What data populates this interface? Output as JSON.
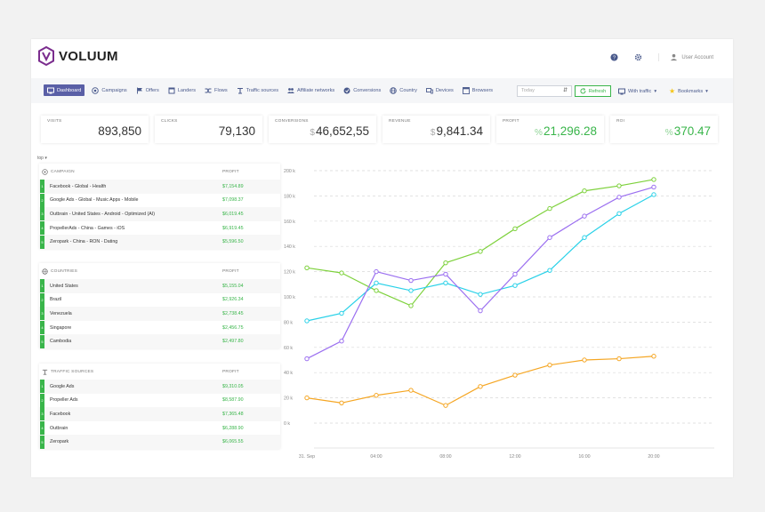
{
  "brand": {
    "name": "VOLUUM",
    "color": "#7b2d8e"
  },
  "header": {
    "help_icon": "help-icon",
    "settings_icon": "gear-icon",
    "user_label": "User Account"
  },
  "nav": {
    "items": [
      {
        "label": "Dashboard",
        "icon": "dashboard-icon",
        "active": true
      },
      {
        "label": "Campaigns",
        "icon": "campaigns-icon"
      },
      {
        "label": "Offers",
        "icon": "flag-icon"
      },
      {
        "label": "Landers",
        "icon": "landers-icon"
      },
      {
        "label": "Flows",
        "icon": "flows-icon"
      },
      {
        "label": "Traffic sources",
        "icon": "traffic-source-icon"
      },
      {
        "label": "Affiliate networks",
        "icon": "users-icon"
      },
      {
        "label": "Conversions",
        "icon": "conversions-icon"
      },
      {
        "label": "Country",
        "icon": "globe-icon"
      },
      {
        "label": "Devices",
        "icon": "devices-icon"
      },
      {
        "label": "Browsers",
        "icon": "browser-icon"
      }
    ],
    "date_select": "Today",
    "refresh_label": "Refresh",
    "with_traffic_label": "With traffic",
    "bookmarks_label": "Bookmarks"
  },
  "colors": {
    "accent": "#5a5fa6",
    "green": "#39b54a",
    "nav_text": "#4a5a8c"
  },
  "cards": [
    {
      "label": "VISITS",
      "currency": "",
      "value": "893,850",
      "positive": false
    },
    {
      "label": "CLICKS",
      "currency": "",
      "value": "79,130",
      "positive": false
    },
    {
      "label": "CONVERSIONS",
      "currency": "$",
      "value": "46,652,55",
      "positive": false
    },
    {
      "label": "REVENUE",
      "currency": "$",
      "value": "9,841.34",
      "positive": false
    },
    {
      "label": "PROFIT",
      "currency": "%",
      "value": "21,296.28",
      "positive": true
    },
    {
      "label": "ROI",
      "currency": "%",
      "value": "370.47",
      "positive": true
    }
  ],
  "top_selector": "top",
  "panels": [
    {
      "title": "CAMPAIGN",
      "icon": "target-icon",
      "col": "PROFIT",
      "rows": [
        {
          "rank": "1",
          "name": "Facebook - Global - Health",
          "value": "$7,154.89"
        },
        {
          "rank": "2",
          "name": "Google Ads - Global - Music Apps - Mobile",
          "value": "$7,098.37"
        },
        {
          "rank": "3",
          "name": "Outbrain - United States - Android - Optimized (AI)",
          "value": "$6,019.45"
        },
        {
          "rank": "4",
          "name": "PropellerAds - China - Games - iOS",
          "value": "$6,919.45"
        },
        {
          "rank": "5",
          "name": "Zeropark - China - RON - Dating",
          "value": "$5,596.50"
        }
      ]
    },
    {
      "title": "COUNTRIES",
      "icon": "globe-icon",
      "col": "PROFIT",
      "rows": [
        {
          "rank": "1",
          "name": "United States",
          "value": "$5,155.04"
        },
        {
          "rank": "2",
          "name": "Brazil",
          "value": "$2,926.34"
        },
        {
          "rank": "3",
          "name": "Venezuela",
          "value": "$2,738.45"
        },
        {
          "rank": "4",
          "name": "Singapore",
          "value": "$2,456.75"
        },
        {
          "rank": "5",
          "name": "Cambodia",
          "value": "$2,497.80"
        }
      ]
    },
    {
      "title": "TRAFFIC SOURCES",
      "icon": "traffic-source-icon",
      "col": "PROFIT",
      "rows": [
        {
          "rank": "1",
          "name": "Google Ads",
          "value": "$9,310.05"
        },
        {
          "rank": "2",
          "name": "Propeller Ads",
          "value": "$8,587.90"
        },
        {
          "rank": "3",
          "name": "Facebook",
          "value": "$7,365.48"
        },
        {
          "rank": "4",
          "name": "Outbrain",
          "value": "$6,288.90"
        },
        {
          "rank": "5",
          "name": "Zeropark",
          "value": "$6,065.55"
        }
      ]
    }
  ],
  "chart_data": {
    "type": "line",
    "x_ticks": [
      "31. Sep",
      "04:00",
      "08:00",
      "12:00",
      "16:00",
      "20:00"
    ],
    "x_tick_positions": [
      0,
      4,
      8,
      12,
      16,
      20
    ],
    "y_ticks": [
      "200 k",
      "180 k",
      "160 k",
      "140 k",
      "120 k",
      "100 k",
      "80 k",
      "60 k",
      "40 k",
      "20 k",
      "0 k"
    ],
    "ylim": [
      0,
      200000
    ],
    "xlim": [
      0,
      20
    ],
    "grid": true,
    "x": [
      0,
      2,
      4,
      6,
      8,
      10,
      12,
      14,
      16,
      18,
      20
    ],
    "series": [
      {
        "color": "#7dd13b",
        "values": [
          123000,
          119000,
          105000,
          93000,
          127000,
          136000,
          154000,
          170000,
          184000,
          188000,
          193000
        ]
      },
      {
        "color": "#29d1e8",
        "values": [
          81000,
          87000,
          111000,
          105000,
          111000,
          102000,
          109000,
          121000,
          147000,
          166000,
          181000
        ]
      },
      {
        "color": "#9b6ff0",
        "values": [
          51000,
          65000,
          120000,
          113000,
          118000,
          89000,
          118000,
          147000,
          164000,
          179000,
          187000
        ]
      },
      {
        "color": "#f5a623",
        "values": [
          20000,
          16000,
          22000,
          26000,
          14000,
          29000,
          38000,
          46000,
          50000,
          51000,
          53000
        ]
      }
    ]
  }
}
